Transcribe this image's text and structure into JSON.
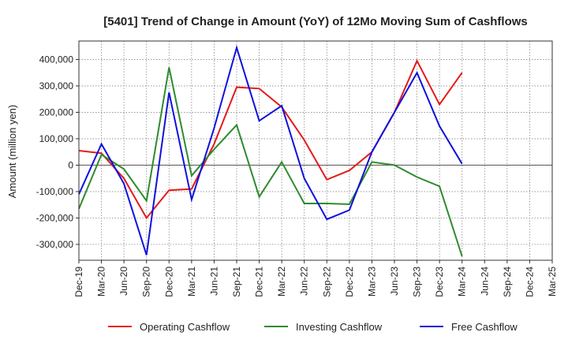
{
  "chart_data": {
    "type": "line",
    "title": "[5401]  Trend of Change in Amount (YoY) of 12Mo Moving Sum of Cashflows",
    "xlabel": "",
    "ylabel": "Amount (million yen)",
    "ylim": [
      -360000,
      470000
    ],
    "yticks": [
      -300000,
      -200000,
      -100000,
      0,
      100000,
      200000,
      300000,
      400000
    ],
    "ytick_labels": [
      "-300,000",
      "-200,000",
      "-100,000",
      "0",
      "100,000",
      "200,000",
      "300,000",
      "400,000"
    ],
    "grid": true,
    "legend_position": "bottom",
    "categories": [
      "Dec-19",
      "Mar-20",
      "Jun-20",
      "Sep-20",
      "Dec-20",
      "Mar-21",
      "Jun-21",
      "Sep-21",
      "Dec-21",
      "Mar-22",
      "Jun-22",
      "Sep-22",
      "Dec-22",
      "Mar-23",
      "Jun-23",
      "Sep-23",
      "Dec-23",
      "Mar-24",
      "Jun-24",
      "Sep-24",
      "Dec-24",
      "Mar-25"
    ],
    "series": [
      {
        "name": "Operating Cashflow",
        "color": "#e41a1c",
        "values": [
          55000,
          45000,
          -50000,
          -200000,
          -95000,
          -90000,
          80000,
          295000,
          290000,
          220000,
          95000,
          -55000,
          -20000,
          50000,
          200000,
          395000,
          230000,
          350000,
          null,
          null,
          null,
          null
        ]
      },
      {
        "name": "Investing Cashflow",
        "color": "#2e8b2e",
        "values": [
          -165000,
          40000,
          -15000,
          -135000,
          370000,
          -40000,
          60000,
          152000,
          -120000,
          12000,
          -145000,
          -145000,
          -148000,
          12000,
          0,
          -45000,
          -80000,
          -345000,
          null,
          null,
          null,
          null
        ]
      },
      {
        "name": "Free Cashflow",
        "color": "#1010dd",
        "values": [
          -110000,
          80000,
          -70000,
          -340000,
          275000,
          -130000,
          140000,
          445000,
          168000,
          225000,
          -50000,
          -205000,
          -170000,
          50000,
          200000,
          350000,
          148000,
          5000,
          null,
          null,
          null,
          null
        ]
      }
    ]
  }
}
